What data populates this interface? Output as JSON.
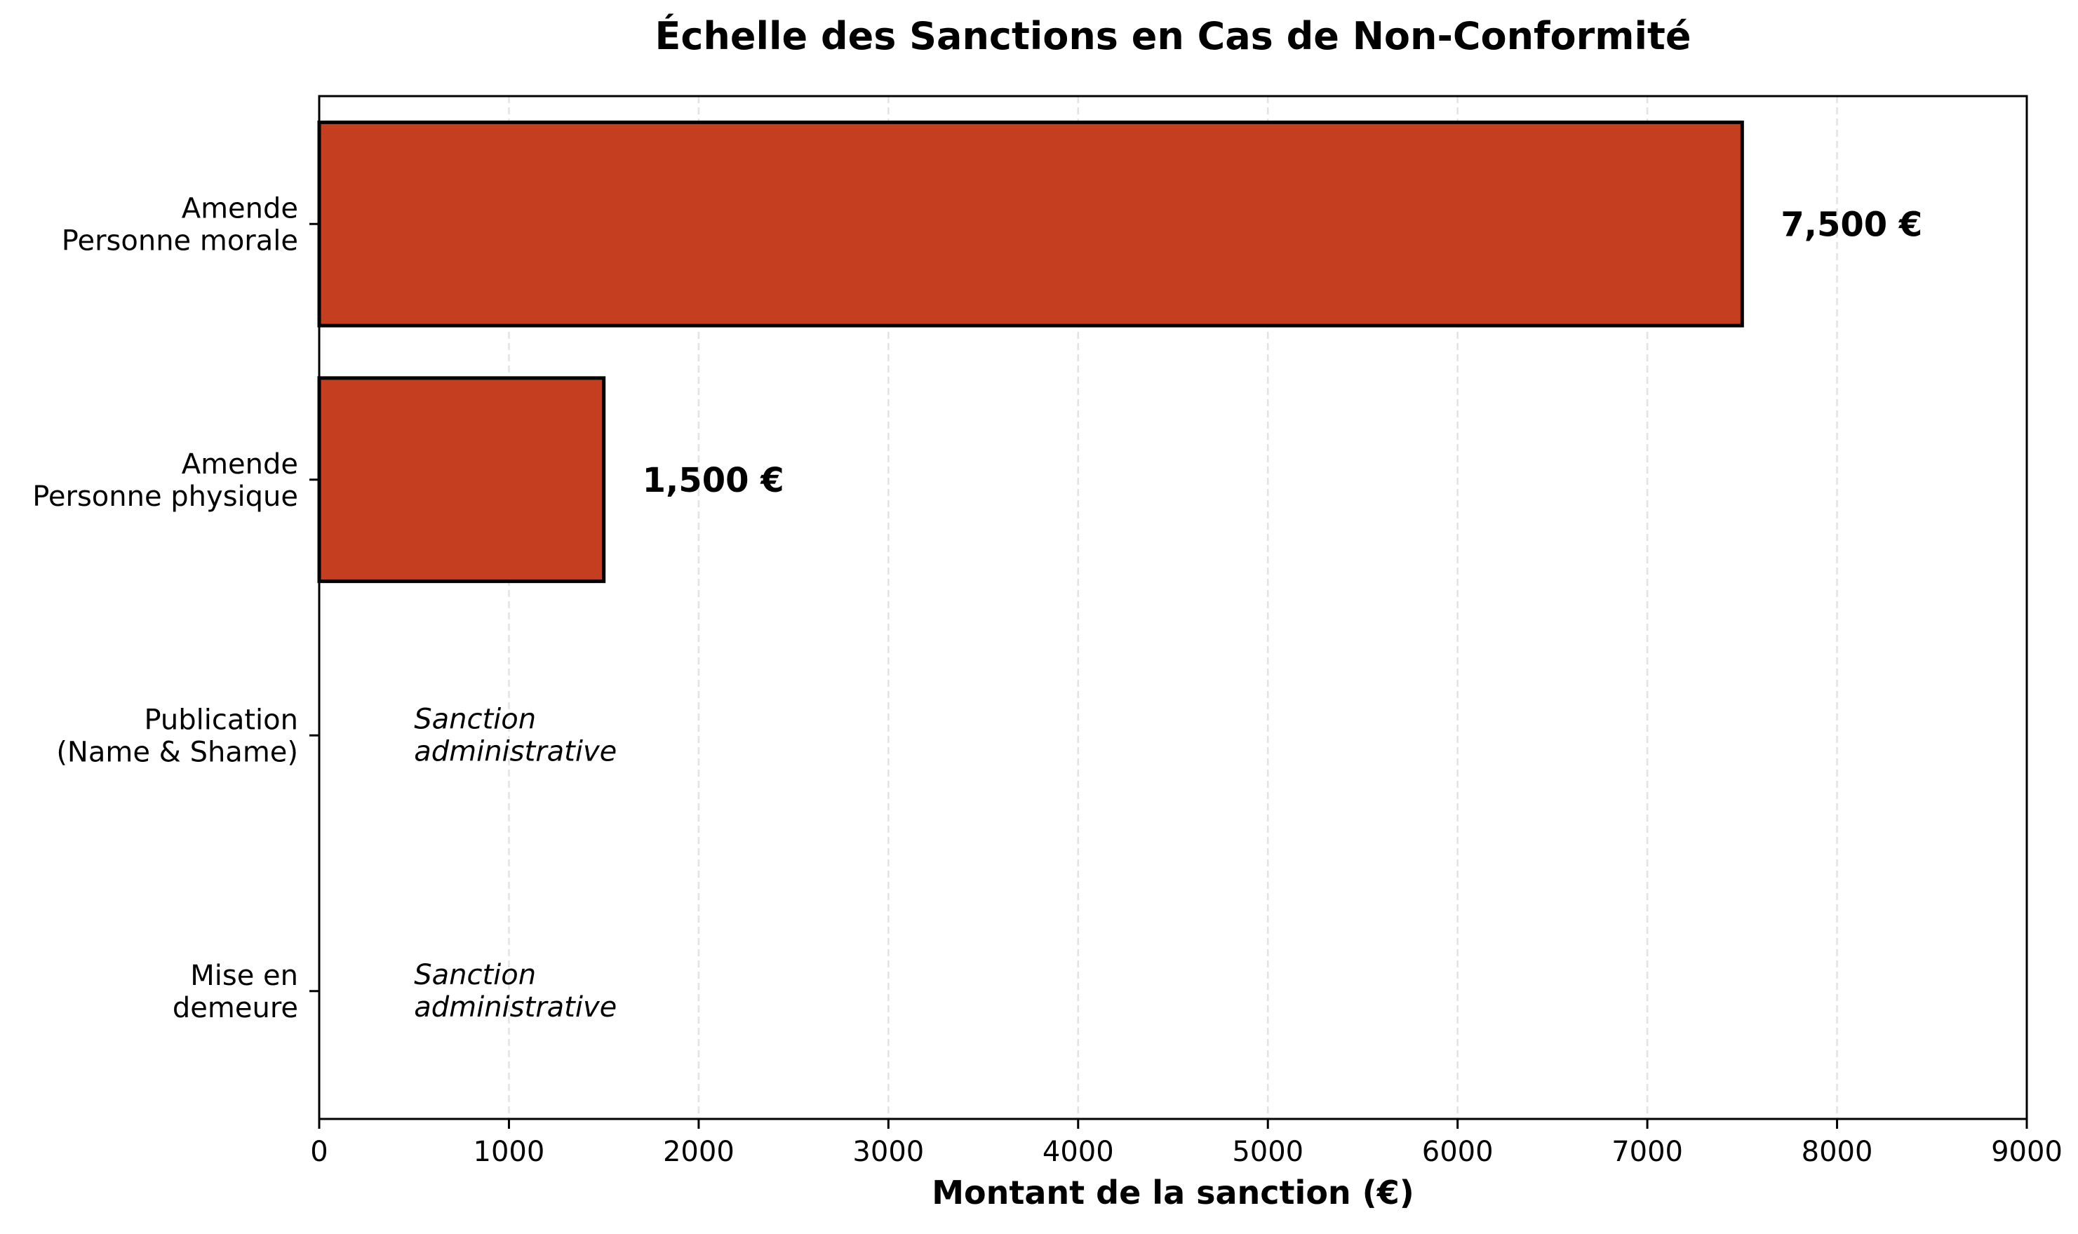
{
  "chart_data": {
    "type": "bar",
    "orientation": "horizontal",
    "title": "Échelle des Sanctions en Cas de Non-Conformité",
    "xlabel": "Montant de la sanction (€)",
    "ylabel": "",
    "xlim": [
      0,
      9000
    ],
    "xticks": [
      0,
      1000,
      2000,
      3000,
      4000,
      5000,
      6000,
      7000,
      8000,
      9000
    ],
    "grid": {
      "x": true,
      "y": false,
      "style": "dashed"
    },
    "colors": {
      "bar": "#c43e1f",
      "edge": "#000000",
      "grid": "#e2e2e2"
    },
    "categories": [
      [
        "Amende",
        "Personne morale"
      ],
      [
        "Amende",
        "Personne physique"
      ],
      [
        "Publication",
        "(Name & Shame)"
      ],
      [
        "Mise en",
        "demeure"
      ]
    ],
    "values": [
      7500,
      1500,
      0,
      0
    ],
    "data_labels": [
      "7,500 €",
      "1,500 €",
      null,
      null
    ],
    "annotations": [
      null,
      null,
      [
        "Sanction",
        "administrative"
      ],
      [
        "Sanction",
        "administrative"
      ]
    ]
  }
}
